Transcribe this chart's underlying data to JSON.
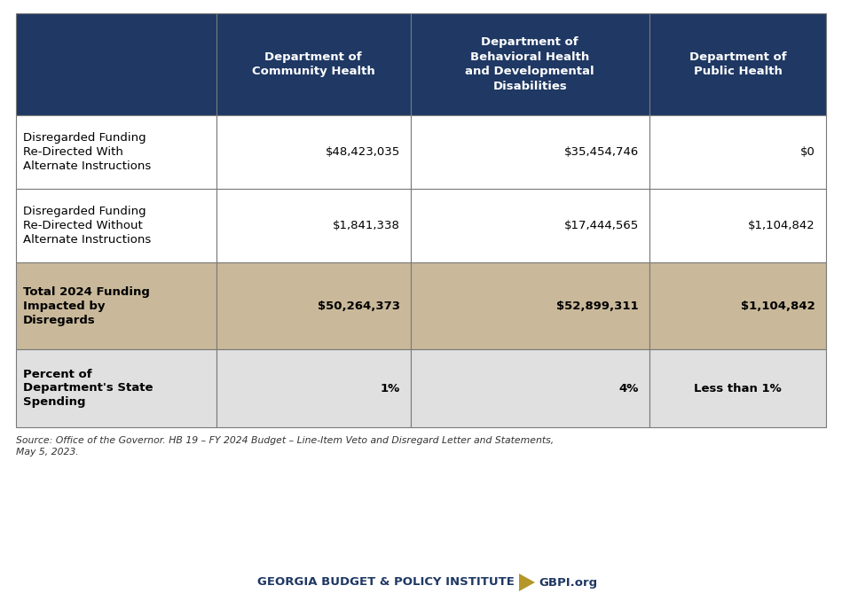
{
  "header_bg": "#1f3864",
  "header_text_color": "#ffffff",
  "row1_bg": "#ffffff",
  "row2_bg": "#ffffff",
  "row3_bg": "#c9b99a",
  "row4_bg": "#e0e0e0",
  "border_color": "#7a7a7a",
  "col0_header": "",
  "col1_header": "Department of\nCommunity Health",
  "col2_header": "Department of\nBehavioral Health\nand Developmental\nDisabilities",
  "col3_header": "Department of\nPublic Health",
  "row1_label": "Disregarded Funding\nRe-Directed With\nAlternate Instructions",
  "row2_label": "Disregarded Funding\nRe-Directed Without\nAlternate Instructions",
  "row3_label": "Total 2024 Funding\nImpacted by\nDisregards",
  "row4_label": "Percent of\nDepartment's State\nSpending",
  "data": [
    [
      "$48,423,035",
      "$35,454,746",
      "$0"
    ],
    [
      "$1,841,338",
      "$17,444,565",
      "$1,104,842"
    ],
    [
      "$50,264,373",
      "$52,899,311",
      "$1,104,842"
    ],
    [
      "1%",
      "4%",
      "Less than 1%"
    ]
  ],
  "source_text": "Source: Office of the Governor. HB 19 – FY 2024 Budget – Line-Item Veto and Disregard Letter and Statements,\nMay 5, 2023.",
  "footer_left": "GEORGIA BUDGET & POLICY INSTITUTE",
  "footer_right": "GBPI.org",
  "footer_text_color": "#1f3864",
  "footer_arrow_color": "#b5962a",
  "fig_width": 9.49,
  "fig_height": 6.87,
  "dpi": 100
}
